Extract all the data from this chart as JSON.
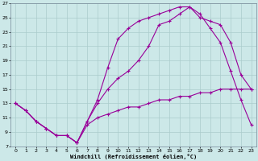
{
  "xlabel": "Windchill (Refroidissement éolien,°C)",
  "bg_color": "#cce8e8",
  "grid_color": "#aacccc",
  "line_color": "#990099",
  "xlim": [
    -0.5,
    23.5
  ],
  "ylim": [
    7,
    27
  ],
  "xticks": [
    0,
    1,
    2,
    3,
    4,
    5,
    6,
    7,
    8,
    9,
    10,
    11,
    12,
    13,
    14,
    15,
    16,
    17,
    18,
    19,
    20,
    21,
    22,
    23
  ],
  "yticks": [
    7,
    9,
    11,
    13,
    15,
    17,
    19,
    21,
    23,
    25,
    27
  ],
  "curve_upper_x": [
    0,
    1,
    2,
    3,
    4,
    5,
    6,
    7,
    8,
    9,
    10,
    11,
    12,
    13,
    14,
    15,
    16,
    17,
    18,
    19,
    20,
    21,
    22,
    23
  ],
  "curve_upper_y": [
    13.0,
    12.0,
    10.5,
    9.5,
    8.5,
    8.5,
    7.5,
    10.5,
    13.5,
    18.0,
    22.0,
    23.5,
    24.5,
    25.0,
    25.5,
    26.0,
    26.5,
    26.5,
    25.5,
    23.5,
    21.5,
    17.5,
    13.5,
    10.0
  ],
  "curve_mid_x": [
    0,
    1,
    2,
    3,
    4,
    5,
    6,
    7,
    8,
    9,
    10,
    11,
    12,
    13,
    14,
    15,
    16,
    17,
    18,
    19,
    20,
    21,
    22,
    23
  ],
  "curve_mid_y": [
    13.0,
    12.0,
    10.5,
    9.5,
    8.5,
    8.5,
    7.5,
    10.5,
    13.0,
    15.0,
    16.5,
    17.5,
    19.0,
    21.0,
    24.0,
    24.5,
    25.5,
    26.5,
    25.0,
    24.5,
    24.0,
    21.5,
    17.0,
    15.0
  ],
  "curve_lower_x": [
    0,
    1,
    2,
    3,
    4,
    5,
    6,
    7,
    8,
    9,
    10,
    11,
    12,
    13,
    14,
    15,
    16,
    17,
    18,
    19,
    20,
    21,
    22,
    23
  ],
  "curve_lower_y": [
    13.0,
    12.0,
    10.5,
    9.5,
    8.5,
    8.5,
    7.5,
    10.0,
    11.0,
    11.5,
    12.0,
    12.5,
    12.5,
    13.0,
    13.5,
    13.5,
    14.0,
    14.0,
    14.5,
    14.5,
    15.0,
    15.0,
    15.0,
    15.0
  ]
}
